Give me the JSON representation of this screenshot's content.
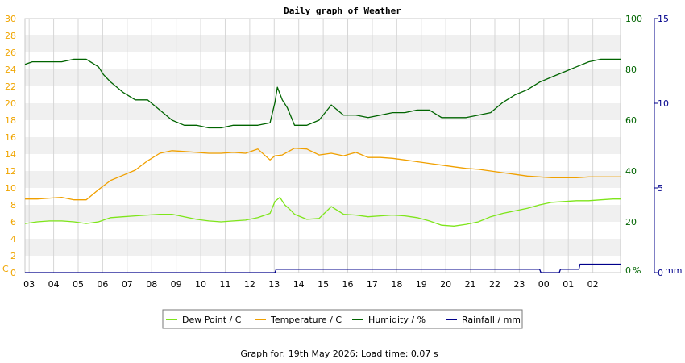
{
  "chart_data": {
    "type": "line",
    "title": "Daily graph of Weather",
    "footer": "Graph for: 19th May 2026; Load time: 0.07 s",
    "x_ticks": [
      "03",
      "04",
      "05",
      "06",
      "07",
      "08",
      "09",
      "10",
      "11",
      "12",
      "13",
      "14",
      "15",
      "16",
      "17",
      "18",
      "19",
      "20",
      "21",
      "22",
      "23",
      "00",
      "01",
      "02"
    ],
    "x_range": [
      0,
      24.3
    ],
    "axes": {
      "left": {
        "unit": "C",
        "min": 0,
        "max": 30,
        "ticks": [
          0,
          2,
          4,
          6,
          8,
          10,
          12,
          14,
          16,
          18,
          20,
          22,
          24,
          26,
          28,
          30
        ],
        "color": "#f0a500"
      },
      "right1": {
        "unit": "%",
        "min": 0,
        "max": 100,
        "ticks": [
          0,
          20,
          40,
          60,
          80,
          100
        ],
        "color": "#006400"
      },
      "right2": {
        "unit": "mm",
        "min": 0,
        "max": 15,
        "ticks": [
          0,
          5,
          10,
          15
        ],
        "color": "#00008b"
      }
    },
    "grid": "alternating horizontal bands, vertical hour lines",
    "legend_position": "bottom",
    "legend": [
      {
        "label": "Dew Point / C",
        "color": "#7ee51a"
      },
      {
        "label": "Temperature / C",
        "color": "#f0a000"
      },
      {
        "label": "Humidity / %",
        "color": "#006400"
      },
      {
        "label": "Rainfall / mm",
        "color": "#00008b"
      }
    ],
    "series": [
      {
        "name": "Dew Point / C",
        "axis": "left",
        "color": "#7ee51a",
        "x": [
          0,
          0.5,
          1,
          1.5,
          2,
          2.5,
          3,
          3.5,
          4,
          4.5,
          5,
          5.5,
          6,
          6.5,
          7,
          7.5,
          8,
          8.5,
          9,
          9.5,
          10,
          10.2,
          10.4,
          10.6,
          10.8,
          11,
          11.5,
          12,
          12.5,
          13,
          13.5,
          14,
          14.5,
          15,
          15.5,
          16,
          16.5,
          17,
          17.5,
          18,
          18.5,
          19,
          19.5,
          20,
          20.5,
          21,
          21.5,
          22,
          22.5,
          23,
          23.5,
          24,
          24.3
        ],
        "values": [
          5.8,
          6.0,
          6.1,
          6.1,
          6.0,
          5.8,
          6.0,
          6.5,
          6.6,
          6.7,
          6.8,
          6.9,
          6.9,
          6.6,
          6.3,
          6.1,
          6.0,
          6.1,
          6.2,
          6.5,
          7.0,
          8.4,
          8.9,
          8.0,
          7.5,
          6.9,
          6.3,
          6.4,
          7.8,
          6.9,
          6.8,
          6.6,
          6.7,
          6.8,
          6.7,
          6.5,
          6.1,
          5.6,
          5.5,
          5.7,
          6.0,
          6.6,
          7.0,
          7.3,
          7.6,
          8.0,
          8.3,
          8.4,
          8.5,
          8.5,
          8.6,
          8.7,
          8.7
        ]
      },
      {
        "name": "Temperature / C",
        "axis": "left",
        "color": "#f0a000",
        "x": [
          0,
          0.5,
          1,
          1.5,
          2,
          2.5,
          3,
          3.5,
          4,
          4.5,
          5,
          5.5,
          6,
          6.5,
          7,
          7.5,
          8,
          8.5,
          9,
          9.5,
          10,
          10.2,
          10.5,
          11,
          11.5,
          12,
          12.5,
          13,
          13.5,
          14,
          14.5,
          15,
          15.5,
          16,
          16.5,
          17,
          17.5,
          18,
          18.5,
          19,
          19.5,
          20,
          20.5,
          21,
          21.5,
          22,
          22.5,
          23,
          23.5,
          24,
          24.3
        ],
        "values": [
          8.7,
          8.7,
          8.8,
          8.9,
          8.6,
          8.6,
          9.8,
          10.9,
          11.5,
          12.1,
          13.2,
          14.1,
          14.4,
          14.3,
          14.2,
          14.1,
          14.1,
          14.2,
          14.1,
          14.6,
          13.3,
          13.8,
          13.9,
          14.7,
          14.6,
          13.9,
          14.1,
          13.8,
          14.2,
          13.6,
          13.6,
          13.5,
          13.3,
          13.1,
          12.9,
          12.7,
          12.5,
          12.3,
          12.2,
          12.0,
          11.8,
          11.6,
          11.4,
          11.3,
          11.2,
          11.2,
          11.2,
          11.3,
          11.3,
          11.3,
          11.3
        ]
      },
      {
        "name": "Humidity / %",
        "axis": "right1",
        "color": "#006400",
        "x": [
          0,
          0.3,
          1,
          1.5,
          2,
          2.5,
          3,
          3.2,
          3.5,
          4,
          4.5,
          5,
          5.5,
          6,
          6.5,
          7,
          7.5,
          8,
          8.5,
          9,
          9.5,
          10,
          10.2,
          10.3,
          10.5,
          10.7,
          11,
          11.5,
          12,
          12.5,
          13,
          13.5,
          14,
          14.5,
          15,
          15.5,
          16,
          16.5,
          17,
          17.5,
          18,
          18.5,
          19,
          19.5,
          20,
          20.5,
          21,
          21.5,
          22,
          22.5,
          23,
          23.5,
          24,
          24.3
        ],
        "values": [
          82,
          83,
          83,
          83,
          84,
          84,
          81,
          78,
          75,
          71,
          68,
          68,
          64,
          60,
          58,
          58,
          57,
          57,
          58,
          58,
          58,
          59,
          67,
          73,
          68,
          65,
          58,
          58,
          60,
          66,
          62,
          62,
          61,
          62,
          63,
          63,
          64,
          64,
          61,
          61,
          61,
          62,
          63,
          67,
          70,
          72,
          75,
          77,
          79,
          81,
          83,
          84,
          84,
          84
        ]
      },
      {
        "name": "Rainfall / mm",
        "axis": "right2",
        "color": "#00008b",
        "x": [
          0,
          10.2,
          10.25,
          21,
          21.05,
          21.8,
          21.85,
          22.6,
          22.65,
          24.3
        ],
        "values": [
          0,
          0,
          0.2,
          0.2,
          0,
          0,
          0.2,
          0.2,
          0.5,
          0.5
        ]
      }
    ]
  }
}
